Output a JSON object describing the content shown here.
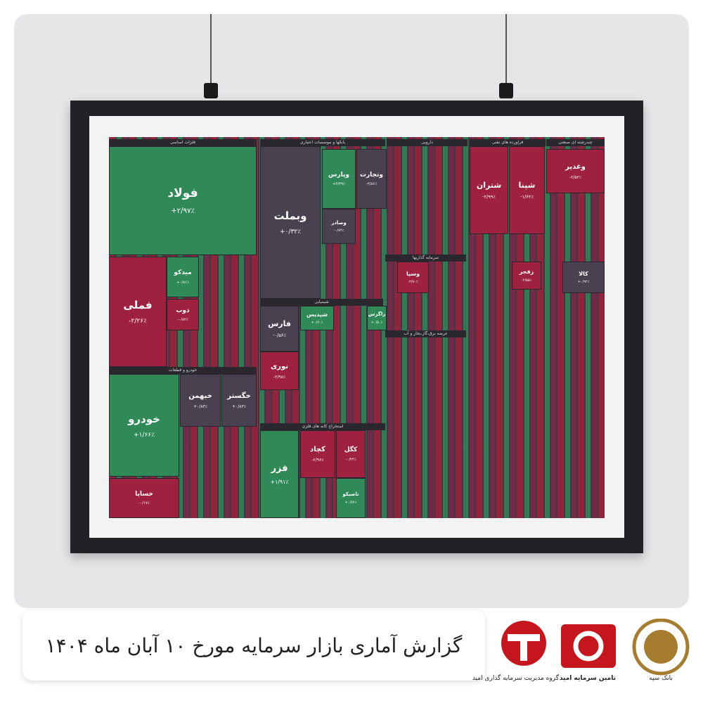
{
  "caption": "گزارش آماری بازار سرمایه مورخ ۱۰ آبان ماه ۱۴۰۴",
  "logos": {
    "omid_group": "گروه مدیریت سرمایه گذاری امید",
    "tamin": "تامین سرمایه امید",
    "sepah": "بانک سپه"
  },
  "treemap": {
    "sectors": [
      "فلزات اساسی",
      "بانکها و موسسات اعتباری",
      "دارویی",
      "فراورده های نفتی",
      "چندرشته ای صنعتی",
      "خودرو و قطعات",
      "شیمیایی",
      "استخراج کانه های فلزی",
      "سرمایه گذاریها",
      "عرضه برق،گاز،بخار و آب"
    ],
    "tiles": [
      {
        "name": "فولاد",
        "change": "+۲/۹۷٪"
      },
      {
        "name": "فملی",
        "change": "-۲/۲۶٪"
      },
      {
        "name": "وبملت",
        "change": "+۰/۳۲٪"
      },
      {
        "name": "خودرو",
        "change": "+۱/۶۶٪"
      },
      {
        "name": "خساپا",
        "change": "-۰/۱۷٪"
      },
      {
        "name": "خبهمن",
        "change": "+۰/۸۳٪"
      },
      {
        "name": "خگستر",
        "change": "+۰/۸۳٪"
      },
      {
        "name": "فزر",
        "change": "+۱/۹۱٪"
      },
      {
        "name": "فارس",
        "change": "-۰/۵۶٪"
      },
      {
        "name": "نوری",
        "change": "-۲/۹۸٪"
      },
      {
        "name": "شتران",
        "change": "-۲/۹۹٪"
      },
      {
        "name": "شپنا",
        "change": "-۱/۶۲٪"
      },
      {
        "name": "وغدیر",
        "change": "-۲/۵۲٪"
      },
      {
        "name": "کچاد",
        "change": "-۲/۹۶٪"
      },
      {
        "name": "کگل",
        "change": "-۰/۴۴٪"
      },
      {
        "name": "وپارس",
        "change": "+۲/۲۹٪"
      },
      {
        "name": "وتجارت",
        "change": "-۲/۸۶٪"
      },
      {
        "name": "ذوب",
        "change": "-۰/۸۲٪"
      },
      {
        "name": "میدکو",
        "change": "+۰/۸۱٪"
      },
      {
        "name": "وصادر",
        "change": "-۰/۸۲٪"
      },
      {
        "name": "شپدیس",
        "change": "+۰/۶۰٪"
      },
      {
        "name": "زاگرس",
        "change": "+۰/۵۰٪"
      },
      {
        "name": "وسپا",
        "change": "-۲/۸۰٪"
      },
      {
        "name": "زفجر",
        "change": "-۲/۵۵٪"
      },
      {
        "name": "کالا",
        "change": "+۰/۹۲٪"
      },
      {
        "name": "تاصیکو",
        "change": "+۰/۷۶٪"
      }
    ]
  }
}
